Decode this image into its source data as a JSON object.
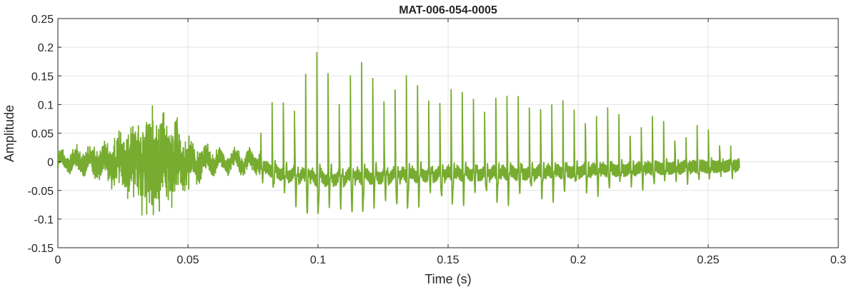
{
  "chart_data": {
    "type": "line",
    "title": "MAT-006-054-0005",
    "xlabel": "Time (s)",
    "ylabel": "Amplitude",
    "xlim": [
      0,
      0.3
    ],
    "ylim": [
      -0.15,
      0.25
    ],
    "xticks": [
      0,
      0.05,
      0.1,
      0.15,
      0.2,
      0.25,
      0.3
    ],
    "xtick_labels": [
      "0",
      "0.05",
      "0.1",
      "0.15",
      "0.2",
      "0.25",
      "0.3"
    ],
    "yticks": [
      -0.15,
      -0.1,
      -0.05,
      0,
      0.05,
      0.1,
      0.15,
      0.2,
      0.25
    ],
    "ytick_labels": [
      "-0.15",
      "-0.1",
      "-0.05",
      "0",
      "0.05",
      "0.1",
      "0.15",
      "0.2",
      "0.25"
    ],
    "grid": true,
    "series": [
      {
        "name": "waveform",
        "color": "#77AC30",
        "duration": 0.262,
        "segments": [
          {
            "kind": "noise",
            "start": 0.0,
            "end": 0.078,
            "envelope_t": [
              0.0,
              0.01,
              0.02,
              0.03,
              0.035,
              0.042,
              0.05,
              0.055,
              0.065,
              0.078
            ],
            "envelope_a": [
              0.015,
              0.02,
              0.035,
              0.07,
              0.09,
              0.075,
              0.045,
              0.025,
              0.015,
              0.02
            ]
          },
          {
            "kind": "voiced",
            "start": 0.078,
            "end": 0.262,
            "period": 0.0043,
            "envelope_t": [
              0.078,
              0.085,
              0.095,
              0.1,
              0.12,
              0.15,
              0.18,
              0.2,
              0.23,
              0.262
            ],
            "envelope_a": [
              0.05,
              0.12,
              0.16,
              0.18,
              0.16,
              0.13,
              0.12,
              0.1,
              0.07,
              0.04
            ]
          }
        ]
      }
    ]
  }
}
